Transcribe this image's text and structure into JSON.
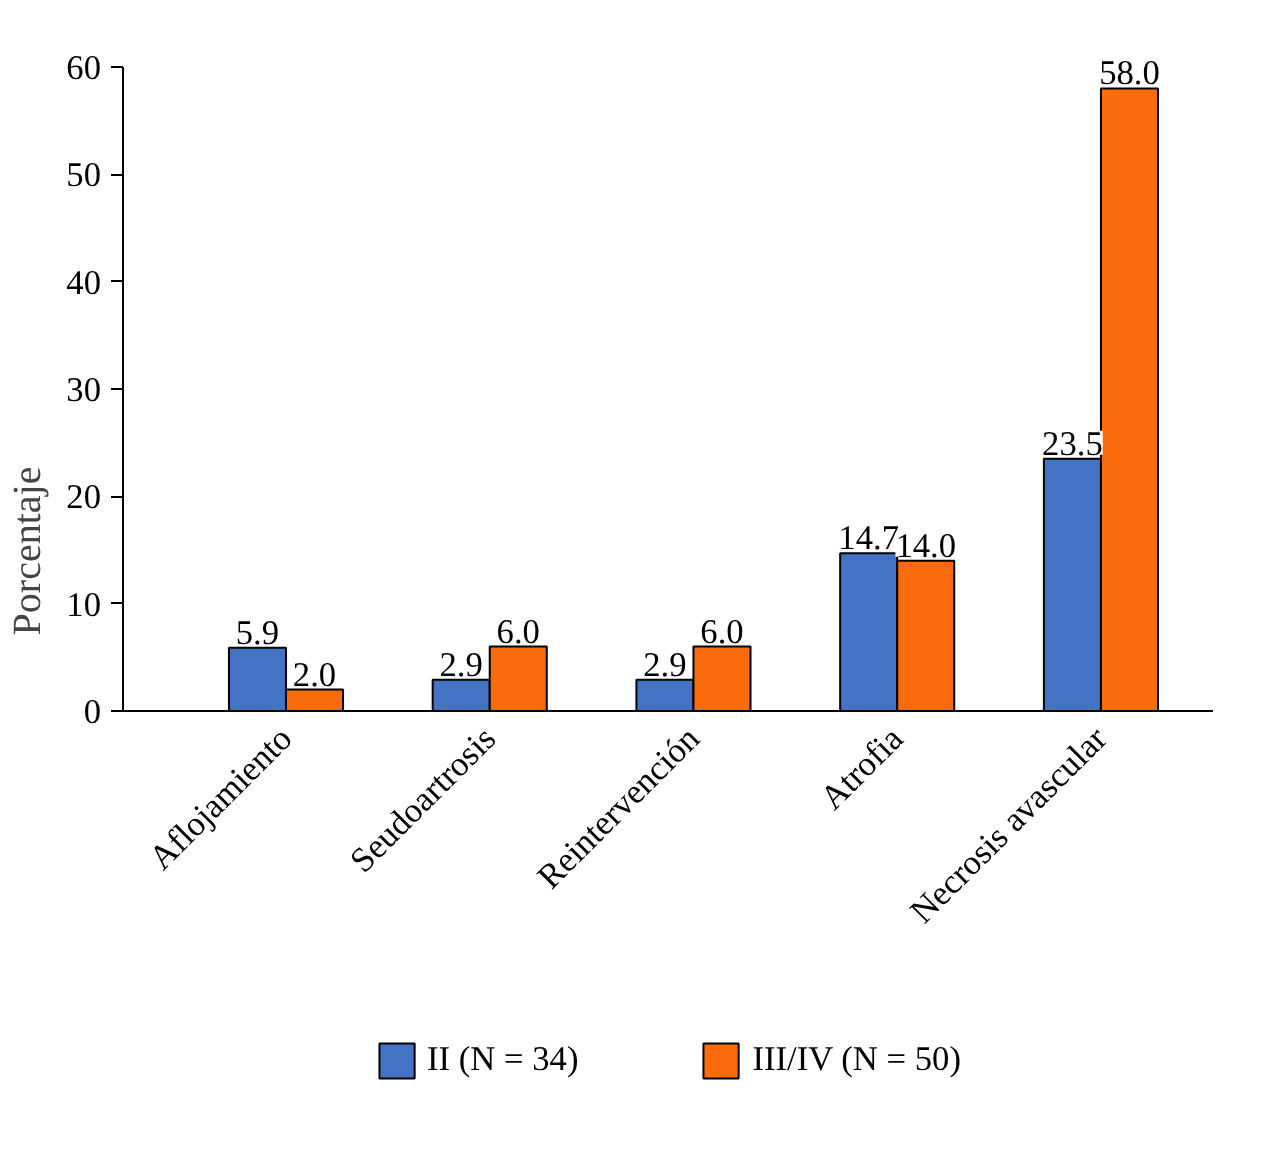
{
  "chart_data": {
    "type": "bar",
    "ylabel": "Porcentaje",
    "categories": [
      "Aflojamiento",
      "Seudoartrosis",
      "Reintervención",
      "Atrofia",
      "Necrosis avascular"
    ],
    "series": [
      {
        "name": "II (N = 34)",
        "color": "#4472c4",
        "values": [
          5.9,
          2.9,
          2.9,
          14.7,
          23.5
        ],
        "value_labels": [
          "5.9",
          "2.9",
          "2.9",
          "14.7",
          "23.5"
        ]
      },
      {
        "name": "III/IV (N = 50)",
        "color": "#f96b0b",
        "values": [
          2.0,
          6.0,
          6.0,
          14.0,
          58.0
        ],
        "value_labels": [
          "2.0",
          "6.0",
          "6.0",
          "14.0",
          "58.0"
        ]
      }
    ],
    "ylim": [
      0,
      60
    ],
    "yticks": [
      0,
      10,
      20,
      30,
      40,
      50,
      60
    ],
    "grid": false,
    "legend": "bottom"
  }
}
